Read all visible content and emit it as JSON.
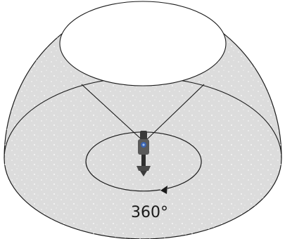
{
  "figure": {
    "rotation_label": "360°",
    "colors": {
      "dome_fill": "#dcdcdc",
      "outline": "#1a1a1a",
      "texture_dot": "#ffffff",
      "camera_body": "#5a5a5a",
      "camera_dark": "#2e2e2e",
      "camera_lens": "#3b63b0"
    },
    "icons": {
      "camera": "360-camera-icon",
      "rotation_arrow": "arrowhead-icon"
    }
  }
}
